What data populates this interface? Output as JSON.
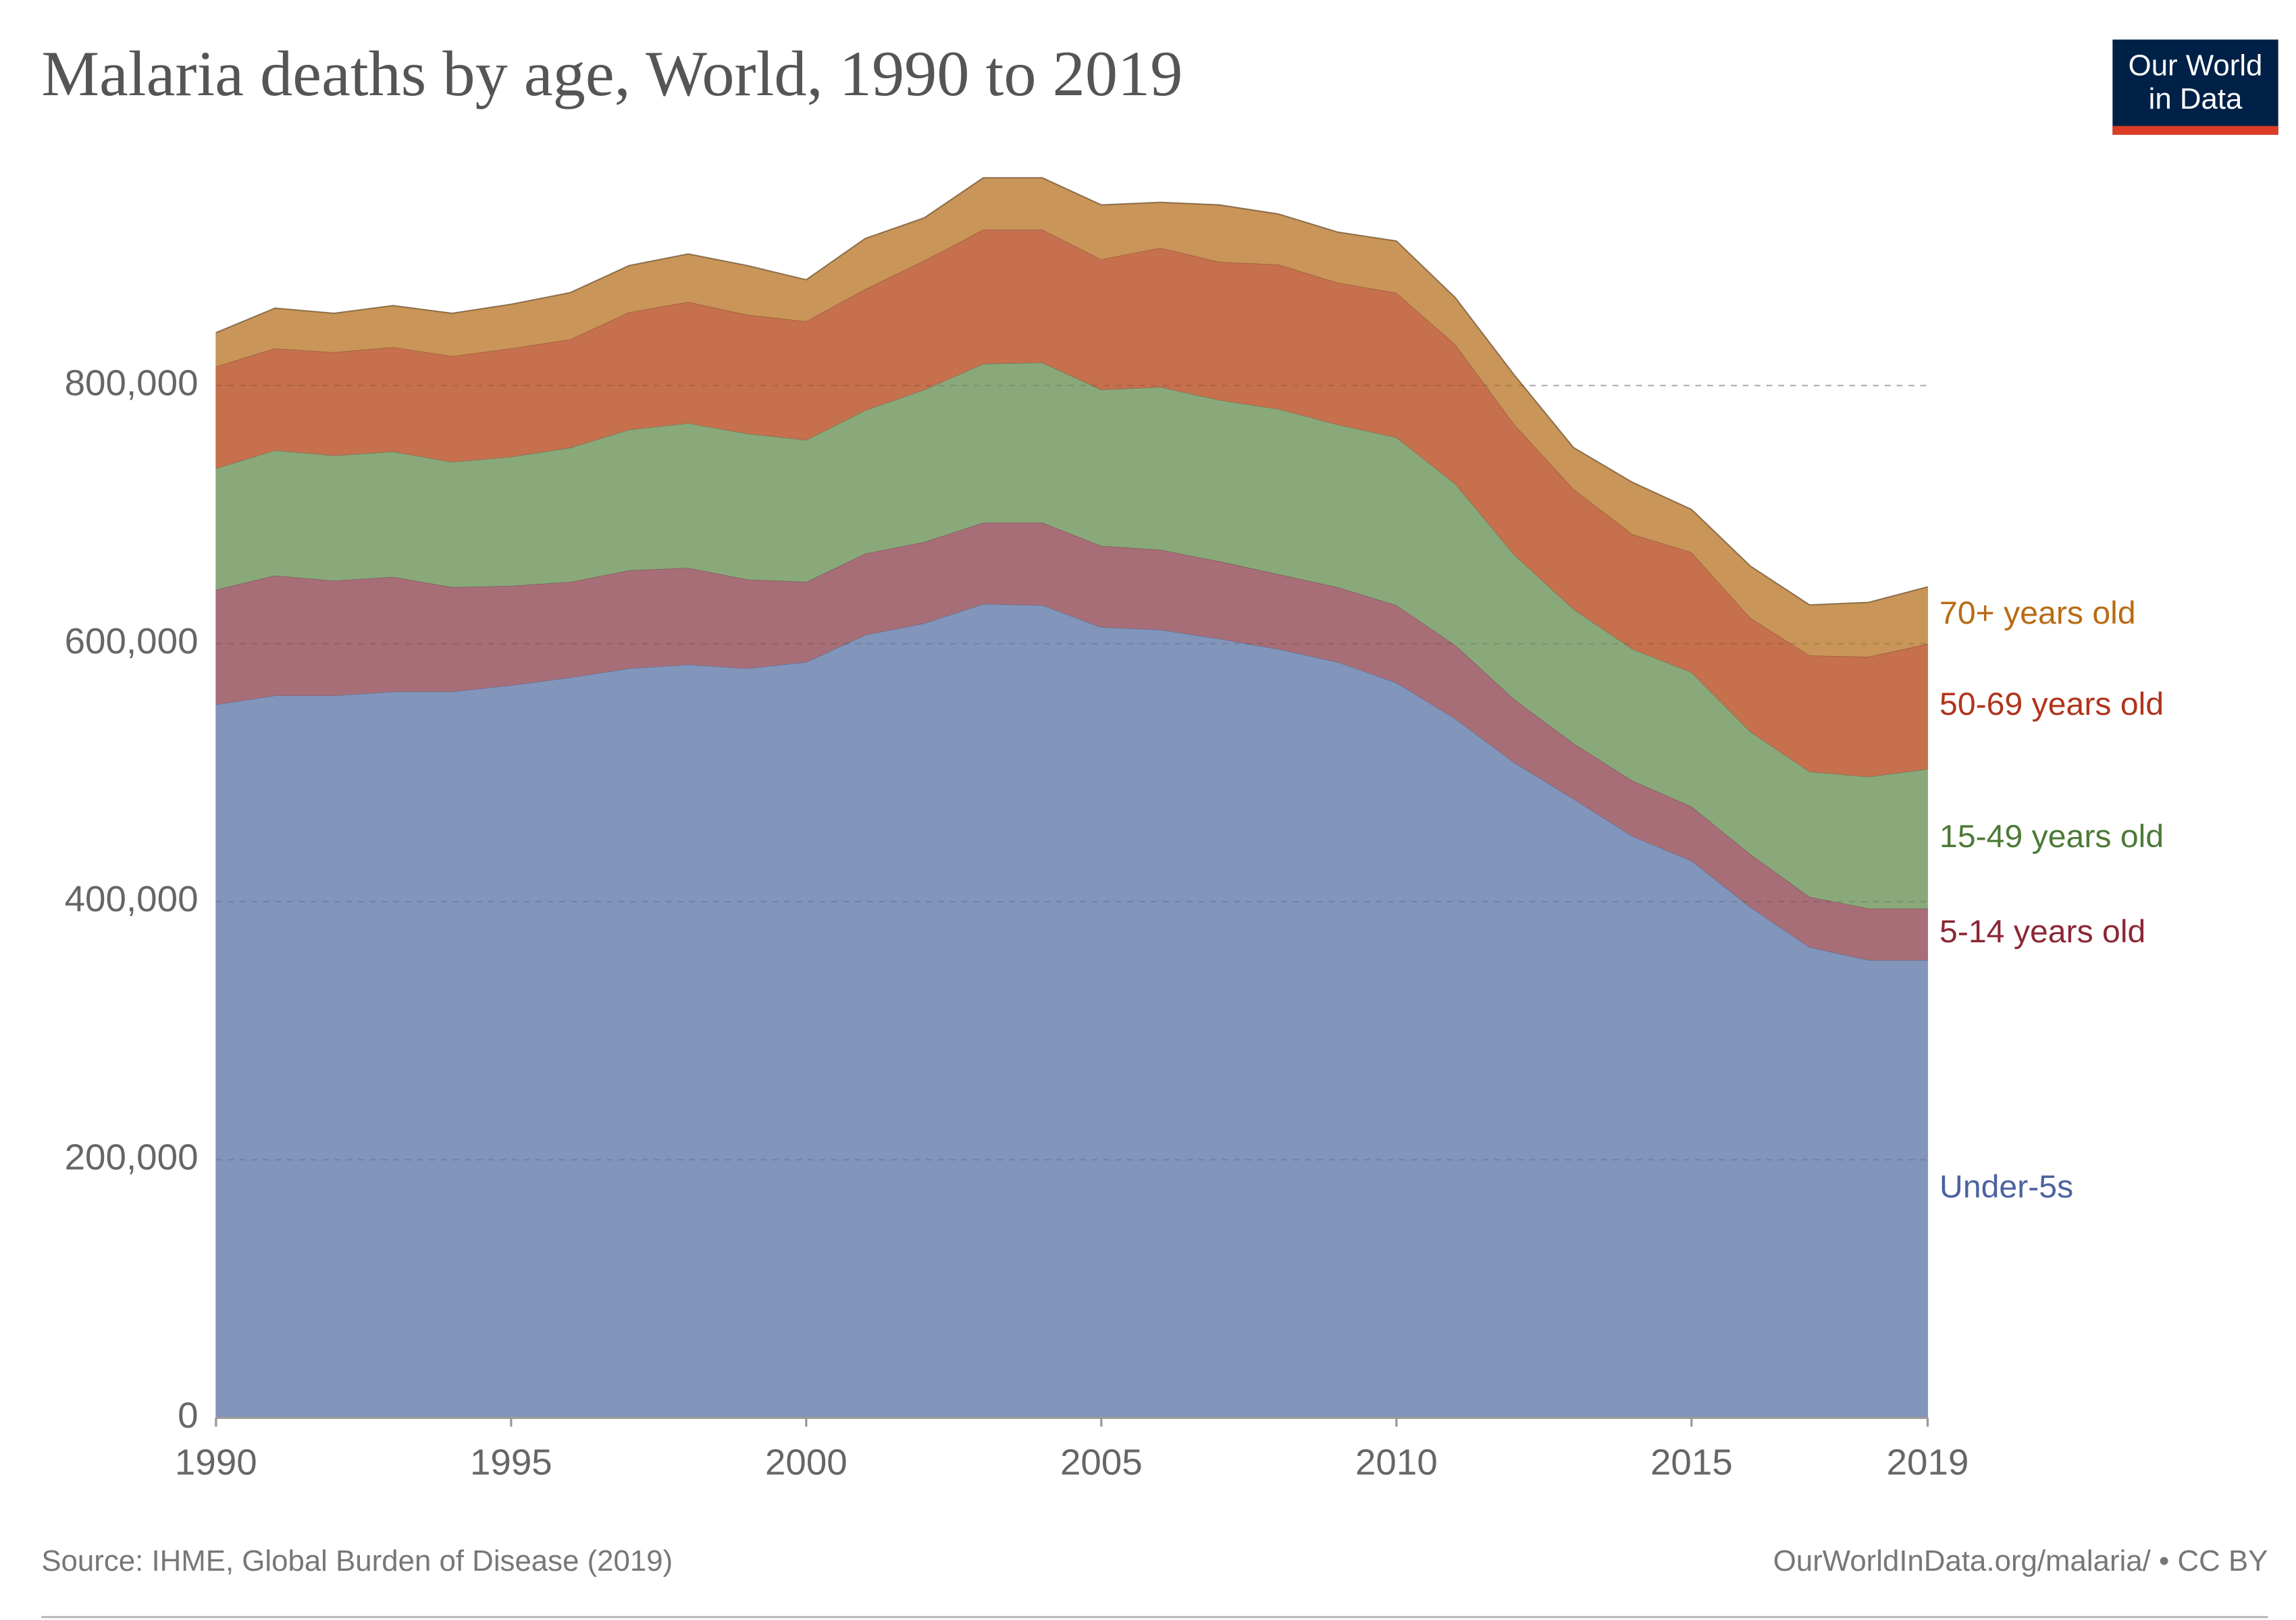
{
  "chart_data": {
    "type": "stacked_area",
    "title": "Malaria deaths by age, World, 1990 to 2019",
    "source": "Source: IHME, Global Burden of Disease (2019)",
    "footer": "OurWorldInData.org/malaria/ • CC BY",
    "logo": [
      "Our World",
      "in Data"
    ],
    "x": [
      1990,
      1991,
      1992,
      1993,
      1994,
      1995,
      1996,
      1997,
      1998,
      1999,
      2000,
      2001,
      2002,
      2003,
      2004,
      2005,
      2006,
      2007,
      2008,
      2009,
      2010,
      2011,
      2012,
      2013,
      2014,
      2015,
      2016,
      2017,
      2018,
      2019
    ],
    "xlim": [
      1990,
      2019
    ],
    "xticks": [
      1990,
      1995,
      2000,
      2005,
      2010,
      2015,
      2019
    ],
    "ylim": [
      0,
      1000000
    ],
    "yticks": [
      0,
      {
        "value": 200000,
        "label": "200,000"
      },
      {
        "value": 400000,
        "label": "400,000"
      },
      {
        "value": 600000,
        "label": "600,000"
      },
      {
        "value": 800000,
        "label": "800,000"
      }
    ],
    "grid": true,
    "series": [
      {
        "name": "Under-5s",
        "color": "#8295bb",
        "label_color": "#4c62a0",
        "values": [
          553000,
          560000,
          560000,
          563000,
          563000,
          568000,
          574000,
          581000,
          584000,
          581000,
          586000,
          607000,
          616000,
          631000,
          630000,
          613000,
          611000,
          604000,
          596000,
          586000,
          570000,
          542000,
          508000,
          480000,
          451000,
          432000,
          396000,
          365000,
          355000,
          355000
        ]
      },
      {
        "name": "5-14 years old",
        "color": "#a86e77",
        "label_color": "#8b2736",
        "values": [
          89000,
          93000,
          89000,
          89000,
          81000,
          77000,
          74000,
          76000,
          75000,
          69000,
          62000,
          63000,
          63000,
          63000,
          64000,
          63000,
          62000,
          60000,
          58000,
          58000,
          60000,
          57000,
          49000,
          43000,
          43000,
          42000,
          41000,
          39000,
          40000,
          40000
        ]
      },
      {
        "name": "15-49 years old",
        "color": "#8aa97b",
        "label_color": "#4c7a37",
        "values": [
          94000,
          97000,
          97000,
          97000,
          97000,
          100000,
          104000,
          109000,
          112000,
          113000,
          110000,
          111000,
          118000,
          123000,
          124000,
          121000,
          126000,
          125000,
          128000,
          126000,
          130000,
          125000,
          112000,
          104000,
          102000,
          104000,
          95000,
          97000,
          102000,
          108000
        ]
      },
      {
        "name": "50-69 years old",
        "color": "#c6704e",
        "label_color": "#b0341b",
        "values": [
          79000,
          79000,
          80000,
          81000,
          82000,
          84000,
          84000,
          91000,
          94000,
          92000,
          92000,
          94000,
          100000,
          104000,
          103000,
          101000,
          108000,
          107000,
          112000,
          110000,
          112000,
          108000,
          101000,
          93000,
          89000,
          93000,
          88000,
          90000,
          93000,
          97000
        ]
      },
      {
        "name": "70+ years old",
        "color": "#c99558",
        "label_color": "#b86b14",
        "values": [
          26000,
          31000,
          30000,
          32000,
          33000,
          34000,
          36000,
          36000,
          37000,
          38000,
          32000,
          39000,
          33000,
          40000,
          40000,
          42000,
          35000,
          44000,
          39000,
          39000,
          40000,
          36000,
          38000,
          32000,
          40000,
          33000,
          40000,
          39000,
          42000,
          44000
        ]
      }
    ]
  }
}
